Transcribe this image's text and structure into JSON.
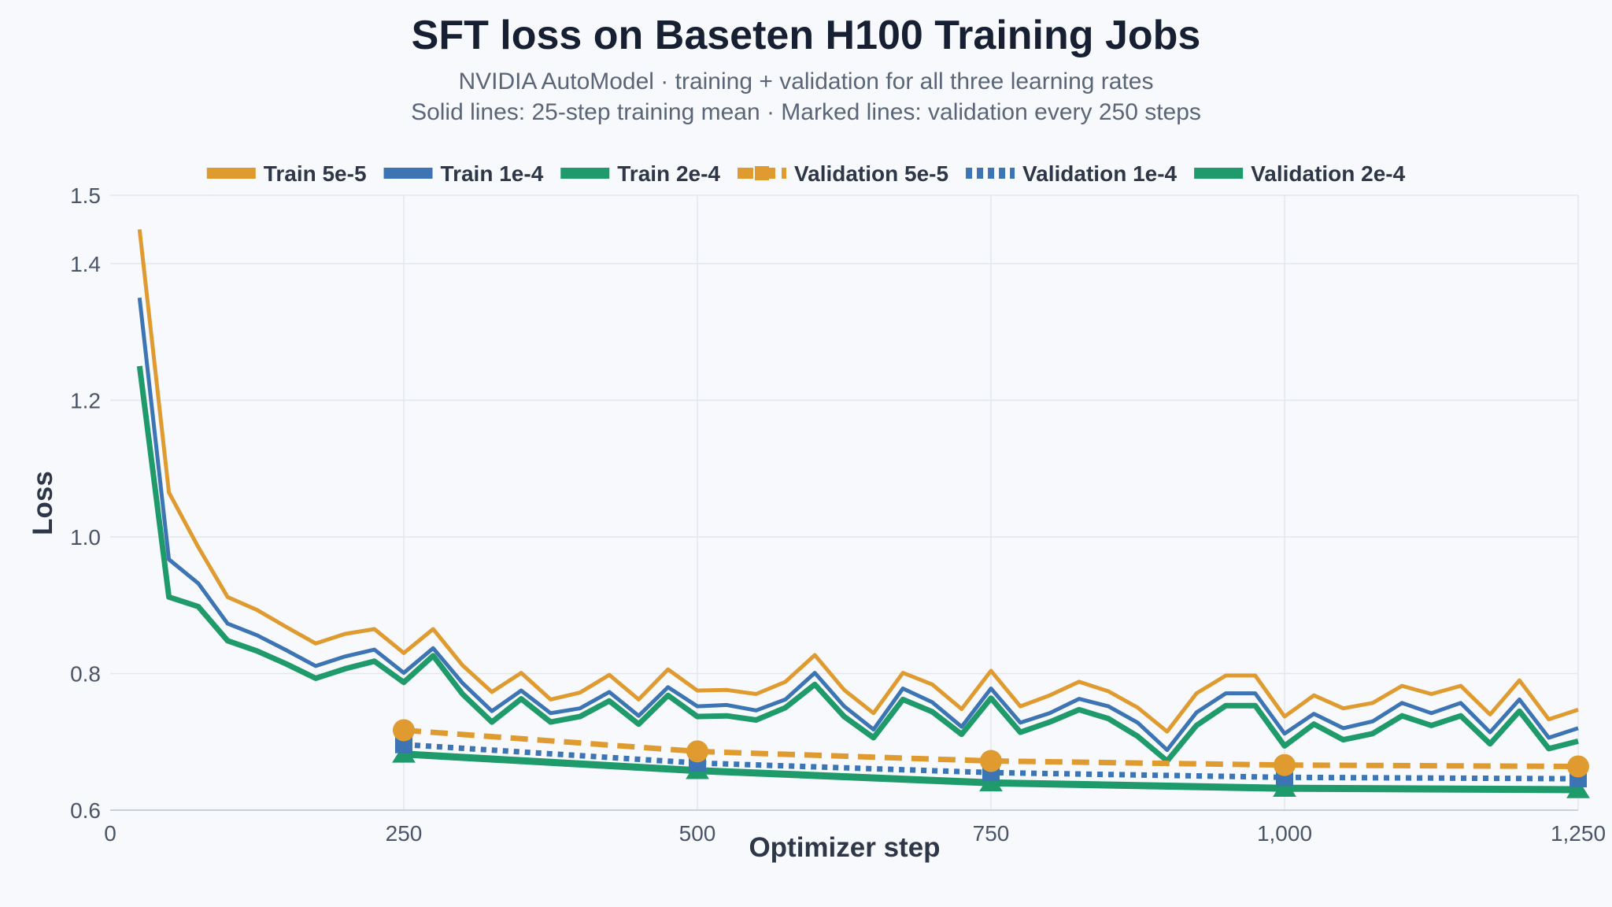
{
  "chart_data": {
    "type": "line",
    "title": "SFT loss on Baseten H100 Training Jobs",
    "subtitle_lines": [
      "NVIDIA AutoModel · training + validation for all three learning rates",
      "Solid lines: 25-step training mean · Marked lines: validation every 250 steps"
    ],
    "xlabel": "Optimizer step",
    "ylabel": "Loss",
    "xlim": [
      0,
      1250
    ],
    "ylim": [
      0.6,
      1.5
    ],
    "x_ticks": [
      0,
      250,
      500,
      750,
      1000,
      1250
    ],
    "x_tick_labels": [
      "0",
      "250",
      "500",
      "750",
      "1,000",
      "1,250"
    ],
    "y_ticks": [
      0.6,
      0.8,
      1.0,
      1.2,
      1.4,
      1.5
    ],
    "y_tick_labels": [
      "0.6",
      "0.8",
      "1.0",
      "1.2",
      "1.4",
      "1.5"
    ],
    "grid": true,
    "legend_position": "top-center",
    "train_x": [
      25,
      50,
      75,
      100,
      125,
      150,
      175,
      200,
      225,
      250,
      275,
      300,
      325,
      350,
      375,
      400,
      425,
      450,
      475,
      500,
      525,
      550,
      575,
      600,
      625,
      650,
      675,
      700,
      725,
      750,
      775,
      800,
      825,
      850,
      875,
      900,
      925,
      950,
      975,
      1000,
      1025,
      1050,
      1075,
      1100,
      1125,
      1150,
      1175,
      1200,
      1225,
      1250
    ],
    "series": [
      {
        "name": "Train 5e-5",
        "kind": "train",
        "color": "#e09b30",
        "values": [
          1.45,
          1.065,
          0.985,
          0.912,
          0.893,
          0.868,
          0.844,
          0.858,
          0.865,
          0.83,
          0.865,
          0.812,
          0.773,
          0.801,
          0.762,
          0.772,
          0.798,
          0.762,
          0.806,
          0.775,
          0.776,
          0.77,
          0.788,
          0.827,
          0.776,
          0.742,
          0.801,
          0.784,
          0.748,
          0.804,
          0.752,
          0.768,
          0.788,
          0.774,
          0.75,
          0.715,
          0.771,
          0.797,
          0.797,
          0.737,
          0.768,
          0.749,
          0.757,
          0.782,
          0.77,
          0.782,
          0.74,
          0.79,
          0.733,
          0.747
        ]
      },
      {
        "name": "Train 1e-4",
        "kind": "train",
        "color": "#3c74b4",
        "values": [
          1.35,
          0.967,
          0.932,
          0.873,
          0.856,
          0.834,
          0.811,
          0.825,
          0.835,
          0.801,
          0.837,
          0.786,
          0.745,
          0.775,
          0.742,
          0.749,
          0.773,
          0.738,
          0.78,
          0.752,
          0.754,
          0.746,
          0.762,
          0.801,
          0.752,
          0.718,
          0.778,
          0.758,
          0.722,
          0.778,
          0.728,
          0.742,
          0.763,
          0.752,
          0.728,
          0.688,
          0.743,
          0.771,
          0.771,
          0.712,
          0.741,
          0.72,
          0.73,
          0.757,
          0.742,
          0.757,
          0.714,
          0.762,
          0.706,
          0.72
        ]
      },
      {
        "name": "Train 2e-4",
        "kind": "train",
        "color": "#1f9a6a",
        "values": [
          1.25,
          0.912,
          0.898,
          0.848,
          0.833,
          0.814,
          0.793,
          0.807,
          0.818,
          0.787,
          0.826,
          0.77,
          0.729,
          0.763,
          0.729,
          0.737,
          0.76,
          0.726,
          0.768,
          0.737,
          0.738,
          0.732,
          0.75,
          0.784,
          0.737,
          0.706,
          0.762,
          0.744,
          0.711,
          0.764,
          0.714,
          0.729,
          0.747,
          0.734,
          0.708,
          0.672,
          0.724,
          0.753,
          0.753,
          0.694,
          0.726,
          0.703,
          0.712,
          0.738,
          0.724,
          0.738,
          0.697,
          0.745,
          0.69,
          0.701
        ]
      },
      {
        "name": "Validation 5e-5",
        "kind": "validation",
        "color": "#e09b30",
        "marker": "circle",
        "x": [
          250,
          500,
          750,
          1000,
          1250
        ],
        "values": [
          0.717,
          0.686,
          0.672,
          0.666,
          0.664
        ]
      },
      {
        "name": "Validation 1e-4",
        "kind": "validation",
        "color": "#3c74b4",
        "marker": "square",
        "x": [
          250,
          500,
          750,
          1000,
          1250
        ],
        "values": [
          0.696,
          0.669,
          0.655,
          0.648,
          0.646
        ]
      },
      {
        "name": "Validation 2e-4",
        "kind": "validation",
        "color": "#1f9a6a",
        "marker": "triangle",
        "x": [
          250,
          500,
          750,
          1000,
          1250
        ],
        "values": [
          0.682,
          0.658,
          0.64,
          0.632,
          0.63
        ]
      }
    ]
  }
}
